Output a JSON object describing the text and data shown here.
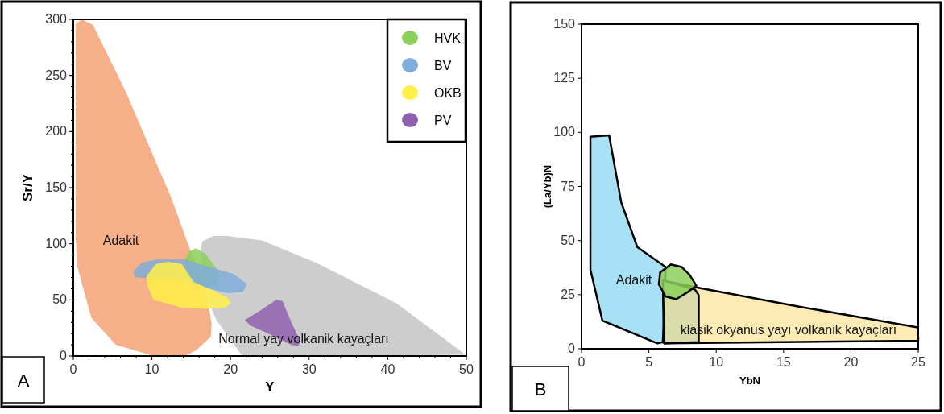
{
  "chart_data": [
    {
      "type": "area",
      "title": "A",
      "xlabel": "Y",
      "ylabel": "Sr/Y",
      "xlim": [
        0,
        50
      ],
      "ylim": [
        0,
        300
      ],
      "xticks": [
        0,
        {
          "value": 2,
          "label": null
        },
        {
          "value": 4,
          "label": null
        },
        {
          "value": 6,
          "label": null
        },
        {
          "value": 8,
          "label": null
        },
        10,
        {
          "value": 12,
          "label": null
        },
        {
          "value": 14,
          "label": null
        },
        {
          "value": 16,
          "label": null
        },
        {
          "value": 18,
          "label": null
        },
        20,
        {
          "value": 22,
          "label": null
        },
        {
          "value": 24,
          "label": null
        },
        {
          "value": 26,
          "label": null
        },
        {
          "value": 28,
          "label": null
        },
        30,
        {
          "value": 32,
          "label": null
        },
        {
          "value": 34,
          "label": null
        },
        {
          "value": 36,
          "label": null
        },
        {
          "value": 38,
          "label": null
        },
        40,
        {
          "value": 42,
          "label": null
        },
        {
          "value": 44,
          "label": null
        },
        {
          "value": 46,
          "label": null
        },
        {
          "value": 48,
          "label": null
        },
        50
      ],
      "yticks": [
        0,
        {
          "value": 10,
          "label": null
        },
        {
          "value": 20,
          "label": null
        },
        {
          "value": 30,
          "label": null
        },
        {
          "value": 40,
          "label": null
        },
        50,
        {
          "value": 60,
          "label": null
        },
        {
          "value": 70,
          "label": null
        },
        {
          "value": 80,
          "label": null
        },
        {
          "value": 90,
          "label": null
        },
        100,
        {
          "value": 110,
          "label": null
        },
        {
          "value": 120,
          "label": null
        },
        {
          "value": 130,
          "label": null
        },
        {
          "value": 140,
          "label": null
        },
        150,
        {
          "value": 160,
          "label": null
        },
        {
          "value": 170,
          "label": null
        },
        {
          "value": 180,
          "label": null
        },
        {
          "value": 190,
          "label": null
        },
        200,
        {
          "value": 210,
          "label": null
        },
        {
          "value": 220,
          "label": null
        },
        {
          "value": 230,
          "label": null
        },
        {
          "value": 240,
          "label": null
        },
        250,
        {
          "value": 260,
          "label": null
        },
        {
          "value": 270,
          "label": null
        },
        {
          "value": 280,
          "label": null
        },
        {
          "value": 290,
          "label": null
        },
        300
      ],
      "grid": false,
      "legend": "top right",
      "annotations": [
        "Adakit",
        "Normal yay volkanik kayaçları"
      ],
      "series": [
        {
          "color": "#f5a274",
          "x": [
            0.3,
            1.1,
            2.5,
            6.7,
            12.4,
            14.9,
            16.7,
            17.6,
            17.5,
            15.6,
            14.2,
            10.2,
            5.4,
            2.3,
            0.5,
            0.3
          ],
          "values": [
            296,
            300,
            295,
            235,
            142,
            94,
            65,
            29,
            17,
            5,
            0,
            0,
            10,
            34,
            80,
            106
          ]
        },
        {
          "color": "#c4c4c4",
          "x": [
            16.4,
            17.8,
            19.6,
            24,
            30.9,
            41.1,
            49.9,
            21.5,
            18.2,
            16.7,
            16.2
          ],
          "values": [
            102,
            107,
            107,
            103,
            83,
            47,
            1,
            0,
            32,
            57,
            91
          ]
        },
        {
          "name": "HVK",
          "color": "#8ccf5a",
          "x": [
            15.6,
            16.8,
            18.2,
            18.6,
            18.2,
            17.1,
            15.6,
            14.5,
            14.2,
            14.7
          ],
          "values": [
            96,
            91,
            78,
            72,
            64,
            61,
            65,
            75,
            86,
            93
          ]
        },
        {
          "name": "BV",
          "color": "#7fadd9",
          "x": [
            7.6,
            8.7,
            10.5,
            14.2,
            17.5,
            20.4,
            22.1,
            21.6,
            19.6,
            16.7,
            13.8,
            10.9,
            8
          ],
          "values": [
            75,
            83,
            86,
            86,
            79,
            73,
            64,
            57,
            56,
            61,
            68,
            69,
            70
          ]
        },
        {
          "name": "OKB",
          "color": "#fff04a",
          "x": [
            9.3,
            10.5,
            12,
            13.8,
            15.3,
            18.2,
            19.6,
            20,
            19.3,
            16.7,
            13.8,
            10.2,
            9.4
          ],
          "values": [
            71,
            82,
            84,
            82,
            66,
            57,
            52,
            47,
            43,
            42,
            43,
            50,
            63
          ]
        },
        {
          "name": "PV",
          "color": "#9060b0",
          "x": [
            21.8,
            24.1,
            25.8,
            26.6,
            27.8,
            28.9,
            28.6,
            27.7,
            25.1,
            22.6
          ],
          "values": [
            32,
            42,
            50,
            49,
            29,
            13,
            9,
            10,
            19,
            27
          ]
        }
      ]
    },
    {
      "type": "area",
      "title": "B",
      "xlabel": "YbN",
      "ylabel": "(La/Yb)N",
      "xlim": [
        0,
        25
      ],
      "ylim": [
        0,
        150
      ],
      "xticks": [
        0,
        5,
        10,
        15,
        20,
        25
      ],
      "yticks": [
        0,
        25,
        50,
        75,
        100,
        125,
        150
      ],
      "grid": false,
      "line_style": "solid",
      "annotations": [
        "Adakit",
        "klasik okyanus yayı volkanik kayaçları"
      ],
      "series": [
        {
          "color": "#99dcf5",
          "x": [
            0.66,
            2.05,
            2.95,
            4.14,
            6.24,
            6.04,
            5.64,
            1.55,
            0.66
          ],
          "values": [
            98,
            98.6,
            67.6,
            47,
            37.8,
            3.1,
            2.5,
            13,
            36.6
          ]
        },
        {
          "color": "#fde7a8",
          "x": [
            6.04,
            8.43,
            16.4,
            24.96,
            25,
            6.14
          ],
          "values": [
            31.6,
            28.5,
            19.2,
            9.9,
            3.7,
            2.5
          ]
        },
        {
          "color": "#d3dba8",
          "x": [
            6.04,
            8.43,
            8.7,
            8.7,
            6.14
          ],
          "values": [
            31.6,
            27.3,
            24.8,
            3.1,
            2.5
          ]
        },
        {
          "color": "#8ccf5a",
          "x": [
            6.63,
            7.43,
            8.03,
            8.53,
            7.83,
            7.03,
            6.24,
            5.74,
            5.84
          ],
          "values": [
            39,
            37.8,
            34.1,
            29.1,
            26,
            22.9,
            24.2,
            29.8,
            35.3
          ]
        }
      ]
    }
  ]
}
